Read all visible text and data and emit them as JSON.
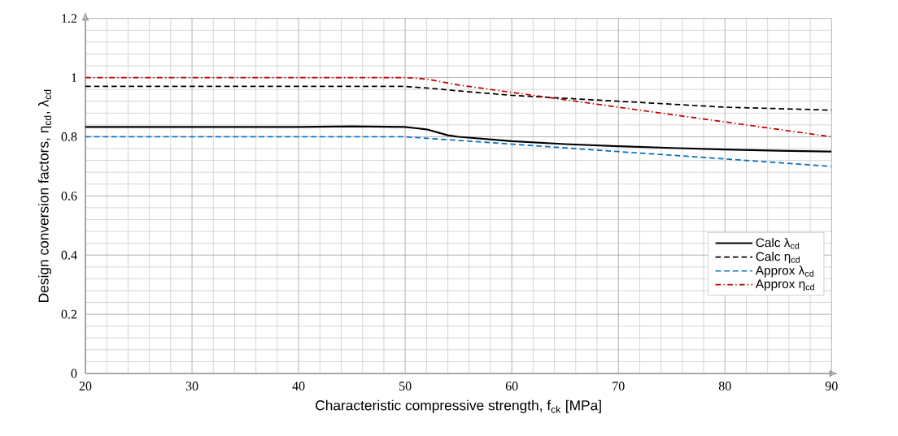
{
  "chart_data": {
    "type": "line",
    "xlabel": "Characteristic compressive strength, f$_{ck}$ [MPa]",
    "ylabel": "Design conversion factors, η$_{cd}$, λ$_{cd}$",
    "xlim": [
      20,
      90
    ],
    "ylim": [
      0,
      1.2
    ],
    "xticks": [
      20,
      30,
      40,
      50,
      60,
      70,
      80,
      90
    ],
    "yticks": [
      0,
      0.2,
      0.4,
      0.6,
      0.8,
      1,
      1.2
    ],
    "grid": true,
    "legend": "right",
    "marker": "none",
    "series": [
      {
        "name": "Calc λ$_{cd}$",
        "color": "#000000",
        "line_style": "solid",
        "x": [
          20,
          30,
          40,
          45,
          50,
          52,
          54,
          55,
          60,
          65,
          70,
          75,
          80,
          85,
          90
        ],
        "values": [
          0.833,
          0.833,
          0.833,
          0.835,
          0.833,
          0.825,
          0.805,
          0.8,
          0.785,
          0.775,
          0.768,
          0.762,
          0.757,
          0.753,
          0.75
        ]
      },
      {
        "name": "Calc η$_{cd}$",
        "color": "#000000",
        "line_style": "dashed",
        "x": [
          20,
          30,
          40,
          50,
          52,
          55,
          60,
          65,
          70,
          75,
          80,
          85,
          90
        ],
        "values": [
          0.97,
          0.97,
          0.97,
          0.97,
          0.965,
          0.955,
          0.94,
          0.93,
          0.92,
          0.91,
          0.9,
          0.895,
          0.89
        ]
      },
      {
        "name": "Approx λ$_{cd}$",
        "color": "#0070c0",
        "line_style": "dashed",
        "x": [
          20,
          30,
          40,
          50,
          60,
          70,
          80,
          90
        ],
        "values": [
          0.8,
          0.8,
          0.8,
          0.8,
          0.775,
          0.75,
          0.725,
          0.7
        ]
      },
      {
        "name": "Approx η$_{cd}$",
        "color": "#c00000",
        "line_style": "dashdot",
        "x": [
          20,
          30,
          40,
          50,
          52,
          55,
          60,
          70,
          80,
          90
        ],
        "values": [
          1,
          1,
          1,
          1,
          0.995,
          0.975,
          0.95,
          0.9,
          0.85,
          0.8
        ]
      }
    ]
  }
}
